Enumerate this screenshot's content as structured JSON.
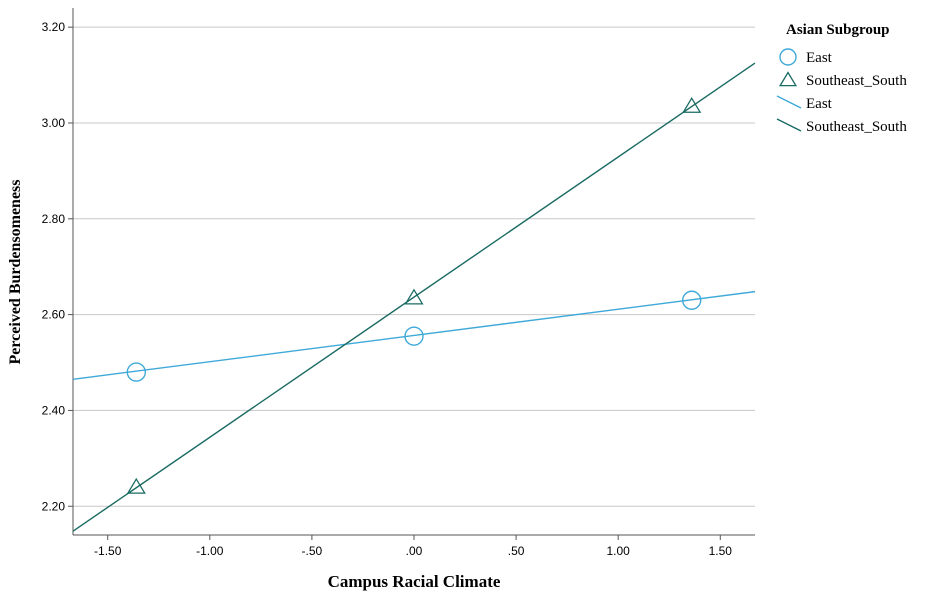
{
  "chart_data": {
    "type": "line",
    "xlabel": "Campus Racial Climate",
    "ylabel": "Perceived Burdensomeness",
    "xlim": [
      -1.67,
      1.67
    ],
    "ylim": [
      2.14,
      3.24
    ],
    "xticks": [
      -1.5,
      -1.0,
      -0.5,
      0.0,
      0.5,
      1.0,
      1.5
    ],
    "xtick_labels": [
      "-1.50",
      "-1.00",
      "-.50",
      ".00",
      ".50",
      "1.00",
      "1.50"
    ],
    "yticks": [
      2.2,
      2.4,
      2.6,
      2.8,
      3.0,
      3.2
    ],
    "ytick_labels": [
      "2.20",
      "2.40",
      "2.60",
      "2.80",
      "3.00",
      "3.20"
    ],
    "grid": "horizontal",
    "legend_title": "Asian Subgroup",
    "legend_position": "top-right, outside plot",
    "legend_entries": [
      {
        "label": "East",
        "kind": "marker-circle",
        "color": "#3fa9d9"
      },
      {
        "label": "Southeast_South",
        "kind": "marker-triangle",
        "color": "#1a6b63"
      },
      {
        "label": "East",
        "kind": "line",
        "color": "#3fa9d9"
      },
      {
        "label": "Southeast_South",
        "kind": "line",
        "color": "#1a6b63"
      }
    ],
    "series": [
      {
        "name": "East",
        "color": "#3fa9d9",
        "marker": "circle",
        "points": [
          {
            "x": -1.36,
            "y": 2.48
          },
          {
            "x": 0.0,
            "y": 2.555
          },
          {
            "x": 1.36,
            "y": 2.63
          }
        ],
        "fit_line": [
          {
            "x": -1.67,
            "y": 2.465
          },
          {
            "x": 1.67,
            "y": 2.648
          }
        ]
      },
      {
        "name": "Southeast_South",
        "color": "#1a6b63",
        "marker": "triangle",
        "points": [
          {
            "x": -1.36,
            "y": 2.24
          },
          {
            "x": 0.0,
            "y": 2.635
          },
          {
            "x": 1.36,
            "y": 3.035
          }
        ],
        "fit_line": [
          {
            "x": -1.67,
            "y": 2.148
          },
          {
            "x": 1.67,
            "y": 3.125
          }
        ]
      }
    ]
  }
}
